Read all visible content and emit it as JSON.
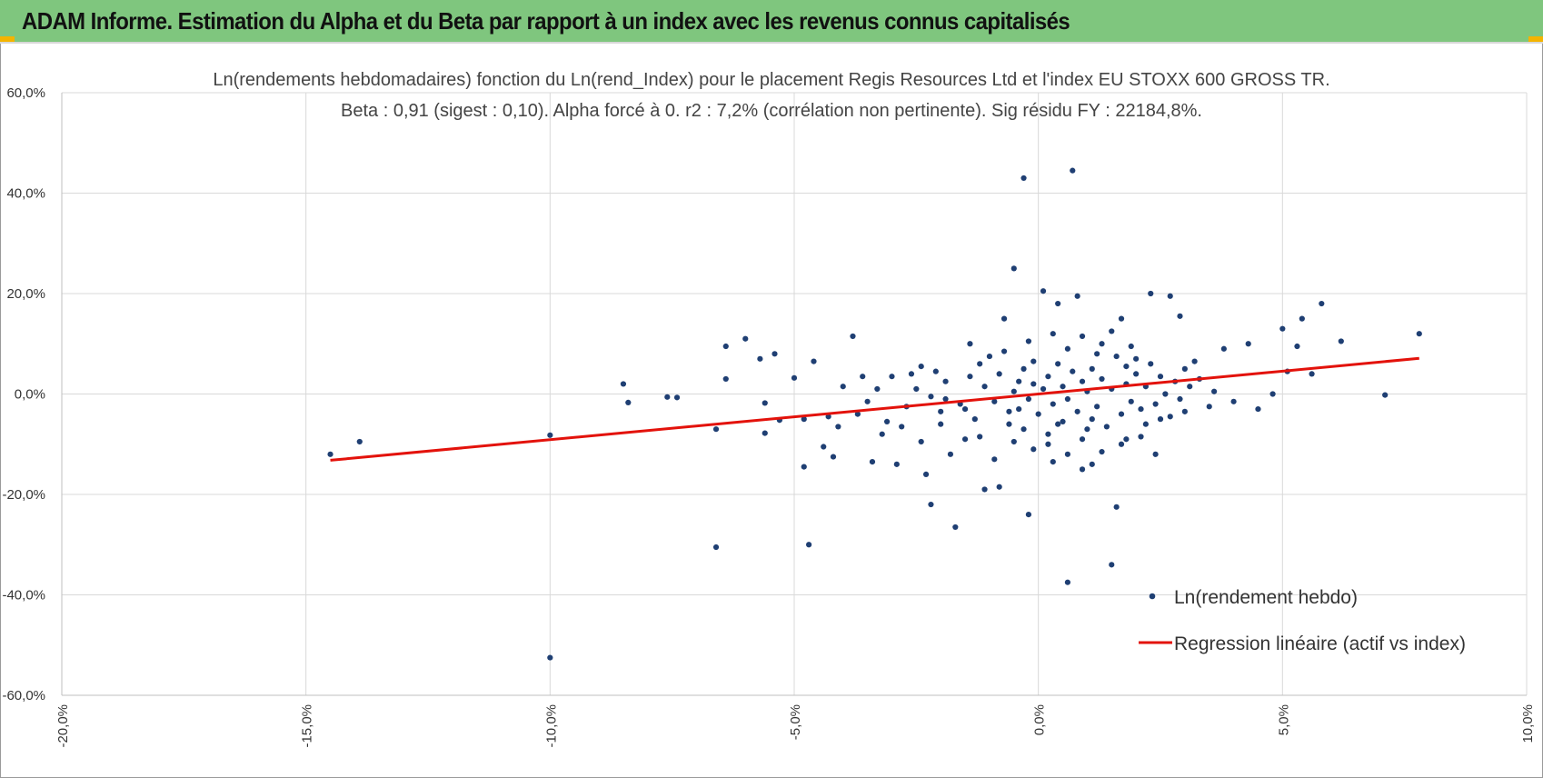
{
  "banner": {
    "title": "ADAM Informe. Estimation du Alpha et du Beta par rapport à un index avec les revenus connus capitalisés"
  },
  "colors": {
    "banner": "#7fc67e",
    "corner": "#f4b400",
    "points": "#1f3f73",
    "regression": "#e3120b",
    "grid": "#d9d9d9"
  },
  "chart_data": {
    "type": "scatter",
    "title_line1": "Ln(rendements hebdomadaires) fonction du Ln(rend_Index) pour le placement Regis Resources Ltd et l'index EU STOXX 600 GROSS TR.",
    "title_line2": "Beta : 0,91 (sigest : 0,10). Alpha forcé à 0. r2 : 7,2% (corrélation non pertinente). Sig résidu FY : 22184,8%.",
    "xlim": [
      -20,
      10
    ],
    "ylim": [
      -60,
      60
    ],
    "x_ticks": [
      "-20,0%",
      "-15,0%",
      "-10,0%",
      "-5,0%",
      "0,0%",
      "5,0%",
      "10,0%"
    ],
    "x_tick_values": [
      -20,
      -15,
      -10,
      -5,
      0,
      5,
      10
    ],
    "y_ticks": [
      "60,0%",
      "40,0%",
      "20,0%",
      "0,0%",
      "-20,0%",
      "-40,0%",
      "-60,0%"
    ],
    "y_tick_values": [
      60,
      40,
      20,
      0,
      -20,
      -40,
      -60
    ],
    "grid": true,
    "legend_position": "bottom-right",
    "series": [
      {
        "name": "Ln(rendement hebdo)",
        "kind": "points",
        "points": [
          [
            -14.5,
            -12
          ],
          [
            -13.9,
            -9.5
          ],
          [
            -10,
            -8.2
          ],
          [
            -10,
            -52.5
          ],
          [
            -8.5,
            2
          ],
          [
            -8.4,
            -1.7
          ],
          [
            -7.6,
            -0.6
          ],
          [
            -7.4,
            -0.7
          ],
          [
            -6.6,
            -7
          ],
          [
            -6.6,
            -30.5
          ],
          [
            -6.4,
            9.5
          ],
          [
            -6.4,
            3
          ],
          [
            -6,
            11
          ],
          [
            -5.7,
            7
          ],
          [
            -5.6,
            -1.8
          ],
          [
            -5.6,
            -7.8
          ],
          [
            -5.4,
            8
          ],
          [
            -5.3,
            -5.2
          ],
          [
            -5,
            3.2
          ],
          [
            -4.8,
            -5
          ],
          [
            -4.8,
            -14.5
          ],
          [
            -4.7,
            -30
          ],
          [
            -4.6,
            6.5
          ],
          [
            -4.4,
            -10.5
          ],
          [
            -4.2,
            -12.5
          ],
          [
            -4.1,
            -6.5
          ],
          [
            -4,
            1.5
          ],
          [
            -3.8,
            11.5
          ],
          [
            -3.7,
            -4
          ],
          [
            -3.6,
            3.5
          ],
          [
            -3.4,
            -13.5
          ],
          [
            -3.2,
            -8
          ],
          [
            -3.1,
            -5.5
          ],
          [
            -3,
            3.5
          ],
          [
            -2.9,
            -14
          ],
          [
            -2.7,
            -2.5
          ],
          [
            -2.6,
            4
          ],
          [
            -2.4,
            -9.5
          ],
          [
            -2.3,
            -16
          ],
          [
            -2.2,
            -22
          ],
          [
            -2.1,
            4.5
          ],
          [
            -2,
            -6
          ],
          [
            -1.9,
            -1
          ],
          [
            -1.8,
            -12
          ],
          [
            -1.7,
            -26.5
          ],
          [
            -1.5,
            -3
          ],
          [
            -1.4,
            10
          ],
          [
            -1.2,
            -8.5
          ],
          [
            -1.1,
            -19
          ],
          [
            -1,
            7.5
          ],
          [
            -0.9,
            -13
          ],
          [
            -0.8,
            -18.5
          ],
          [
            -0.7,
            15
          ],
          [
            -0.6,
            -3.5
          ],
          [
            -0.5,
            25
          ],
          [
            -0.4,
            2.5
          ],
          [
            -0.3,
            43
          ],
          [
            -0.2,
            -24
          ],
          [
            -0.1,
            6.5
          ],
          [
            0.1,
            20.5
          ],
          [
            0.2,
            -10
          ],
          [
            0.3,
            -13.5
          ],
          [
            0.4,
            18
          ],
          [
            0.6,
            -37.5
          ],
          [
            0.7,
            44.5
          ],
          [
            0.8,
            19.5
          ],
          [
            0.9,
            -15
          ],
          [
            1.1,
            -14
          ],
          [
            1.3,
            10
          ],
          [
            1.5,
            -34
          ],
          [
            1.6,
            -22.5
          ],
          [
            1.7,
            15
          ],
          [
            1.8,
            -9
          ],
          [
            2,
            7
          ],
          [
            2.2,
            -6
          ],
          [
            2.3,
            20
          ],
          [
            2.4,
            -12
          ],
          [
            2.5,
            -5
          ],
          [
            2.7,
            19.5
          ],
          [
            2.9,
            15.5
          ],
          [
            3,
            -3.5
          ],
          [
            3.2,
            6.5
          ],
          [
            3.5,
            -2.5
          ],
          [
            3.8,
            9
          ],
          [
            4,
            -1.5
          ],
          [
            4.3,
            10
          ],
          [
            4.5,
            -3
          ],
          [
            4.8,
            0
          ],
          [
            5,
            13
          ],
          [
            5.1,
            4.5
          ],
          [
            5.3,
            9.5
          ],
          [
            5.4,
            15
          ],
          [
            5.6,
            4
          ],
          [
            5.8,
            18
          ],
          [
            6.2,
            10.5
          ],
          [
            7.1,
            -0.2
          ],
          [
            7.8,
            12
          ],
          [
            -4.3,
            -4.5
          ],
          [
            -3.5,
            -1.5
          ],
          [
            -3.3,
            1
          ],
          [
            -2.8,
            -6.5
          ],
          [
            -2.5,
            1
          ],
          [
            -2.2,
            -0.5
          ],
          [
            -1.9,
            2.5
          ],
          [
            -1.6,
            -2
          ],
          [
            -1.4,
            3.5
          ],
          [
            -1.3,
            -5
          ],
          [
            -1.1,
            1.5
          ],
          [
            -0.9,
            -1.5
          ],
          [
            -0.8,
            4
          ],
          [
            -0.6,
            -6
          ],
          [
            -0.5,
            0.5
          ],
          [
            -0.4,
            -3
          ],
          [
            -0.3,
            5
          ],
          [
            -0.2,
            -1
          ],
          [
            -0.1,
            2
          ],
          [
            0,
            -4
          ],
          [
            0.1,
            1
          ],
          [
            0.2,
            3.5
          ],
          [
            0.3,
            -2
          ],
          [
            0.4,
            6
          ],
          [
            0.5,
            -5.5
          ],
          [
            0.5,
            1.5
          ],
          [
            0.6,
            -1
          ],
          [
            0.7,
            4.5
          ],
          [
            0.8,
            -3.5
          ],
          [
            0.9,
            2.5
          ],
          [
            1,
            -7
          ],
          [
            1,
            0.5
          ],
          [
            1.1,
            5
          ],
          [
            1.2,
            -2.5
          ],
          [
            1.3,
            3
          ],
          [
            1.4,
            -6.5
          ],
          [
            1.5,
            1
          ],
          [
            1.6,
            7.5
          ],
          [
            1.7,
            -4
          ],
          [
            1.8,
            2
          ],
          [
            1.9,
            -1.5
          ],
          [
            2,
            4
          ],
          [
            2.1,
            -3
          ],
          [
            2.2,
            1.5
          ],
          [
            2.3,
            6
          ],
          [
            2.4,
            -2
          ],
          [
            2.5,
            3.5
          ],
          [
            2.6,
            0
          ],
          [
            2.7,
            -4.5
          ],
          [
            2.8,
            2.5
          ],
          [
            2.9,
            -1
          ],
          [
            3,
            5
          ],
          [
            3.1,
            1.5
          ],
          [
            3.3,
            3
          ],
          [
            3.6,
            0.5
          ],
          [
            -0.7,
            8.5
          ],
          [
            -0.2,
            10.5
          ],
          [
            0.3,
            12
          ],
          [
            0.6,
            9
          ],
          [
            0.9,
            11.5
          ],
          [
            1.2,
            8
          ],
          [
            1.5,
            12.5
          ],
          [
            1.9,
            9.5
          ],
          [
            -0.5,
            -9.5
          ],
          [
            -0.1,
            -11
          ],
          [
            0.2,
            -8
          ],
          [
            0.6,
            -12
          ],
          [
            0.9,
            -9
          ],
          [
            1.3,
            -11.5
          ],
          [
            1.7,
            -10
          ],
          [
            2.1,
            -8.5
          ],
          [
            -1.5,
            -9
          ],
          [
            -1.2,
            6
          ],
          [
            -2,
            -3.5
          ],
          [
            -2.4,
            5.5
          ],
          [
            -0.3,
            -7
          ],
          [
            0.4,
            -6
          ],
          [
            1.1,
            -5
          ],
          [
            1.8,
            5.5
          ]
        ]
      },
      {
        "name": "Regression linéaire (actif vs index)",
        "kind": "line",
        "points": [
          [
            -14.5,
            -13.2
          ],
          [
            7.8,
            7.1
          ]
        ]
      }
    ]
  }
}
